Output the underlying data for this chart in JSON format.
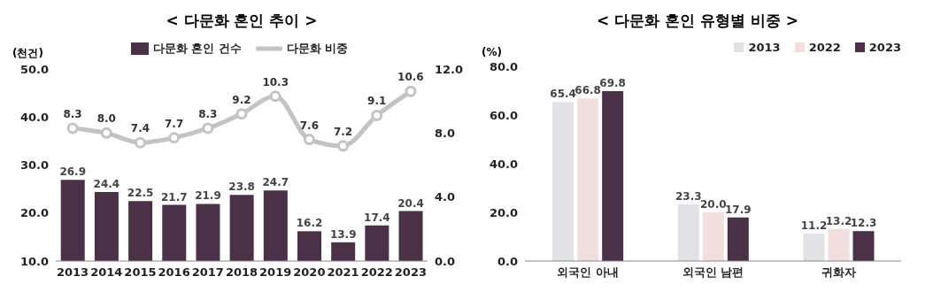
{
  "chart_data": [
    {
      "type": "bar",
      "title": "< 다문화 혼인 추이 >",
      "ylabel": "(천건)",
      "categories": [
        "2013",
        "2014",
        "2015",
        "2016",
        "2017",
        "2018",
        "2019",
        "2020",
        "2021",
        "2022",
        "2023"
      ],
      "series": [
        {
          "name": "다문화 혼인 건수",
          "color": "#4b3148",
          "values": [
            26.9,
            24.4,
            22.5,
            21.7,
            21.9,
            23.8,
            24.7,
            16.2,
            13.9,
            17.4,
            20.4
          ],
          "value_labels": [
            "26.9",
            "24.4",
            "22.5",
            "21.7",
            "21.9",
            "23.8",
            "24.7",
            "16.2",
            "13.9",
            "17.4",
            "20.4"
          ]
        },
        {
          "name": "다문화 비중",
          "type": "line",
          "axis": "y2",
          "color": "#c3c3c3",
          "values": [
            8.3,
            8.0,
            7.4,
            7.7,
            8.3,
            9.2,
            10.3,
            7.6,
            7.2,
            9.1,
            10.6
          ],
          "value_labels": [
            "8.3",
            "8.0",
            "7.4",
            "7.7",
            "8.3",
            "9.2",
            "10.3",
            "7.6",
            "7.2",
            "9.1",
            "10.6"
          ]
        }
      ],
      "ylim": [
        10,
        50
      ],
      "yticks": [
        {
          "value": 10,
          "label": "10.0"
        },
        {
          "value": 20,
          "label": "20.0"
        },
        {
          "value": 30,
          "label": "30.0"
        },
        {
          "value": 40,
          "label": "40.0"
        },
        {
          "value": 50,
          "label": "50.0"
        }
      ],
      "y2lim": [
        0,
        12
      ],
      "y2ticks": [
        {
          "value": 0,
          "label": "0.0"
        },
        {
          "value": 4,
          "label": "4.0"
        },
        {
          "value": 8,
          "label": "8.0"
        },
        {
          "value": 12,
          "label": "12.0"
        }
      ],
      "legend": "top",
      "marker": "circle",
      "grid": false
    },
    {
      "type": "bar",
      "title": "< 다문화 혼인 유형별 비중 >",
      "ylabel": "(%)",
      "categories": [
        "외국인 아내",
        "외국인 남편",
        "귀화자"
      ],
      "series": [
        {
          "name": "2013",
          "color": "#e2e1e6",
          "values": [
            65.4,
            23.3,
            11.2
          ],
          "value_labels": [
            "65.4",
            "23.3",
            "11.2"
          ]
        },
        {
          "name": "2022",
          "color": "#f2dede",
          "values": [
            66.8,
            20.0,
            13.2
          ],
          "value_labels": [
            "66.8",
            "20.0",
            "13.2"
          ]
        },
        {
          "name": "2023",
          "color": "#4b3148",
          "values": [
            69.8,
            17.9,
            12.3
          ],
          "value_labels": [
            "69.8",
            "17.9",
            "12.3"
          ]
        }
      ],
      "ylim": [
        0,
        80
      ],
      "yticks": [
        {
          "value": 0,
          "label": "0.0"
        },
        {
          "value": 20,
          "label": "20.0"
        },
        {
          "value": 40,
          "label": "40.0"
        },
        {
          "value": 60,
          "label": "60.0"
        },
        {
          "value": 80,
          "label": "80.0"
        }
      ],
      "legend": "top right",
      "grid": false
    }
  ]
}
